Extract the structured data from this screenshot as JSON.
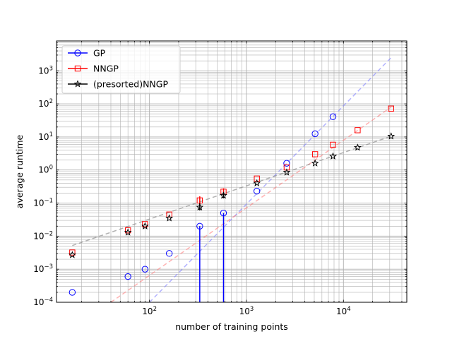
{
  "chart_data": {
    "type": "scatter",
    "title": "",
    "xlabel": "number of training points",
    "ylabel": "average runtime",
    "xscale": "log",
    "yscale": "log",
    "xlim": [
      11,
      45000
    ],
    "ylim": [
      0.0001,
      8000
    ],
    "grid": "major and minor",
    "legend_position": "top-left",
    "x_ticks": [
      {
        "value": 100,
        "base": "10",
        "exp": "2"
      },
      {
        "value": 1000,
        "base": "10",
        "exp": "3"
      },
      {
        "value": 10000,
        "base": "10",
        "exp": "4"
      }
    ],
    "y_ticks": [
      {
        "value": 0.0001,
        "base": "10",
        "exp": "−4"
      },
      {
        "value": 0.001,
        "base": "10",
        "exp": "−3"
      },
      {
        "value": 0.01,
        "base": "10",
        "exp": "−2"
      },
      {
        "value": 0.1,
        "base": "10",
        "exp": "−1"
      },
      {
        "value": 1,
        "base": "10",
        "exp": "0"
      },
      {
        "value": 10,
        "base": "10",
        "exp": "1"
      },
      {
        "value": 100,
        "base": "10",
        "exp": "2"
      },
      {
        "value": 1000,
        "base": "10",
        "exp": "3"
      }
    ],
    "series": [
      {
        "name": "GP",
        "color": "#0000ff",
        "marker": "circle",
        "points": [
          {
            "x": 16,
            "y": 0.0002
          },
          {
            "x": 60,
            "y": 0.0006
          },
          {
            "x": 90,
            "y": 0.001
          },
          {
            "x": 160,
            "y": 0.003
          },
          {
            "x": 330,
            "y": 0.02,
            "err_lo": 5e-05
          },
          {
            "x": 580,
            "y": 0.05,
            "err_lo": 5e-05
          },
          {
            "x": 1280,
            "y": 0.23
          },
          {
            "x": 2600,
            "y": 1.6
          },
          {
            "x": 5100,
            "y": 12.5
          },
          {
            "x": 7800,
            "y": 41
          }
        ],
        "trend": {
          "x1": 100,
          "y1": 0.0001,
          "x2": 31000,
          "y2": 2500,
          "color": "#8080ff"
        }
      },
      {
        "name": "NNGP",
        "color": "#ff0000",
        "marker": "square",
        "points": [
          {
            "x": 16,
            "y": 0.0032
          },
          {
            "x": 60,
            "y": 0.015
          },
          {
            "x": 90,
            "y": 0.023
          },
          {
            "x": 160,
            "y": 0.045
          },
          {
            "x": 330,
            "y": 0.12,
            "err_lo": 0.09,
            "err_hi": 0.16
          },
          {
            "x": 580,
            "y": 0.22,
            "err_lo": 0.18,
            "err_hi": 0.28
          },
          {
            "x": 1280,
            "y": 0.55
          },
          {
            "x": 2600,
            "y": 1.2
          },
          {
            "x": 5100,
            "y": 3.0
          },
          {
            "x": 7800,
            "y": 5.8
          },
          {
            "x": 14000,
            "y": 16
          },
          {
            "x": 31000,
            "y": 72
          }
        ],
        "trend": {
          "x1": 40,
          "y1": 0.0001,
          "x2": 31000,
          "y2": 80,
          "color": "#ff8080"
        }
      },
      {
        "name": "(presorted)NNGP",
        "color": "#000000",
        "marker": "star",
        "points": [
          {
            "x": 16,
            "y": 0.0027
          },
          {
            "x": 60,
            "y": 0.013
          },
          {
            "x": 90,
            "y": 0.02
          },
          {
            "x": 160,
            "y": 0.035
          },
          {
            "x": 330,
            "y": 0.075,
            "err_lo": 0.06,
            "err_hi": 0.1
          },
          {
            "x": 580,
            "y": 0.17,
            "err_lo": 0.14,
            "err_hi": 0.21
          },
          {
            "x": 1280,
            "y": 0.4
          },
          {
            "x": 2600,
            "y": 0.85
          },
          {
            "x": 5100,
            "y": 1.6
          },
          {
            "x": 7800,
            "y": 2.6
          },
          {
            "x": 14000,
            "y": 4.8
          },
          {
            "x": 31000,
            "y": 10.5
          }
        ],
        "trend": {
          "x1": 16,
          "y1": 0.0052,
          "x2": 31000,
          "y2": 10.5,
          "color": "#808080"
        }
      }
    ]
  }
}
